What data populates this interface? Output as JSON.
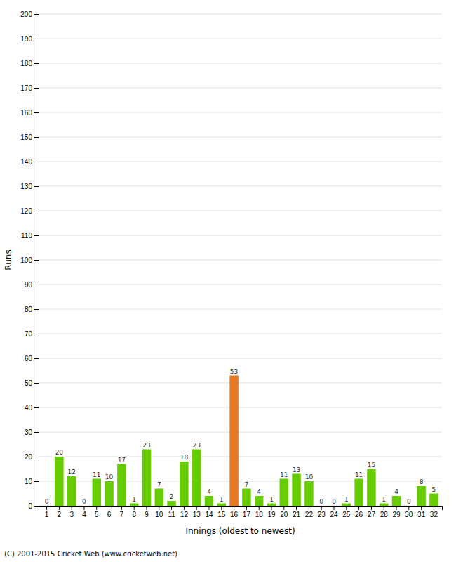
{
  "chart_data": {
    "type": "bar",
    "categories": [
      "1",
      "2",
      "3",
      "4",
      "5",
      "6",
      "7",
      "8",
      "9",
      "10",
      "11",
      "12",
      "13",
      "14",
      "15",
      "16",
      "17",
      "18",
      "19",
      "20",
      "21",
      "22",
      "23",
      "24",
      "25",
      "26",
      "27",
      "28",
      "29",
      "30",
      "31",
      "32"
    ],
    "values": [
      0,
      20,
      12,
      0,
      11,
      10,
      17,
      1,
      23,
      7,
      2,
      18,
      23,
      4,
      1,
      53,
      7,
      4,
      1,
      11,
      13,
      10,
      0,
      0,
      1,
      11,
      15,
      1,
      4,
      0,
      8,
      5
    ],
    "colors": [
      "#66cc00",
      "#66cc00",
      "#66cc00",
      "#66cc00",
      "#66cc00",
      "#66cc00",
      "#66cc00",
      "#66cc00",
      "#66cc00",
      "#66cc00",
      "#66cc00",
      "#66cc00",
      "#66cc00",
      "#66cc00",
      "#66cc00",
      "#e87722",
      "#66cc00",
      "#66cc00",
      "#66cc00",
      "#66cc00",
      "#66cc00",
      "#66cc00",
      "#66cc00",
      "#66cc00",
      "#66cc00",
      "#66cc00",
      "#66cc00",
      "#66cc00",
      "#66cc00",
      "#66cc00",
      "#66cc00",
      "#66cc00"
    ],
    "xlabel": "Innings (oldest to newest)",
    "ylabel": "Runs",
    "ylim": [
      0,
      200
    ],
    "yticks": [
      0,
      10,
      20,
      30,
      40,
      50,
      60,
      70,
      80,
      90,
      100,
      110,
      120,
      130,
      140,
      150,
      160,
      170,
      180,
      190,
      200
    ],
    "grid": true,
    "data_labels": true,
    "annotations": [
      "(C) 2001-2015 Cricket Web (www.cricketweb.net)"
    ]
  }
}
